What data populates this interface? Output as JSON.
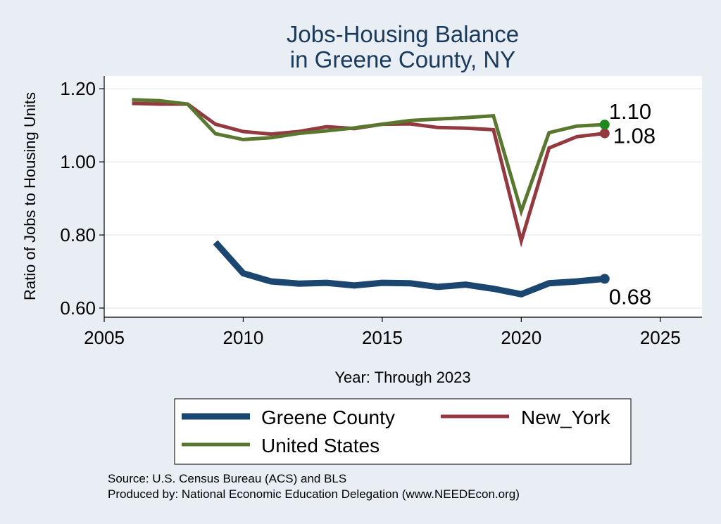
{
  "chart_data": {
    "type": "line",
    "title": [
      "Jobs-Housing Balance",
      "in Greene County, NY"
    ],
    "xlabel": "Year: Through 2023",
    "ylabel": "Ratio of Jobs to Housing Units",
    "xlim": [
      2005,
      2026.5
    ],
    "ylim": [
      0.575,
      1.235
    ],
    "xticks": [
      2005,
      2010,
      2015,
      2020,
      2025
    ],
    "xtick_labels": [
      "2005",
      "2010",
      "2015",
      "2020",
      "2025"
    ],
    "yticks": [
      0.6,
      0.8,
      1.0,
      1.2
    ],
    "ytick_labels": [
      "0.60",
      "0.80",
      "1.00",
      "1.20"
    ],
    "grid": true,
    "legend_position": "bottom",
    "series": [
      {
        "name": "Greene County",
        "color": "#1a4670",
        "x": [
          2009,
          2010,
          2011,
          2012,
          2013,
          2014,
          2015,
          2016,
          2017,
          2018,
          2019,
          2020,
          2021,
          2022,
          2023
        ],
        "values": [
          0.78,
          0.695,
          0.673,
          0.667,
          0.669,
          0.662,
          0.669,
          0.668,
          0.658,
          0.664,
          0.653,
          0.638,
          0.668,
          0.673,
          0.68
        ],
        "end_label": "0.68",
        "end_marker_color": "#1a4670"
      },
      {
        "name": "New_York",
        "color": "#93393f",
        "x": [
          2006,
          2007,
          2008,
          2009,
          2010,
          2011,
          2012,
          2013,
          2014,
          2015,
          2016,
          2017,
          2018,
          2019,
          2020,
          2021,
          2022,
          2023
        ],
        "values": [
          1.16,
          1.158,
          1.158,
          1.103,
          1.083,
          1.076,
          1.083,
          1.096,
          1.091,
          1.103,
          1.104,
          1.094,
          1.092,
          1.088,
          0.784,
          1.038,
          1.069,
          1.078
        ],
        "end_label": "1.08",
        "end_marker_color": "#93393f"
      },
      {
        "name": "United States",
        "color": "#5a7730",
        "x": [
          2006,
          2007,
          2008,
          2009,
          2010,
          2011,
          2012,
          2013,
          2014,
          2015,
          2016,
          2017,
          2018,
          2019,
          2020,
          2021,
          2022,
          2023
        ],
        "values": [
          1.17,
          1.167,
          1.158,
          1.077,
          1.061,
          1.066,
          1.078,
          1.085,
          1.093,
          1.103,
          1.113,
          1.117,
          1.121,
          1.126,
          0.865,
          1.08,
          1.098,
          1.102
        ],
        "end_label": "1.10",
        "end_marker_color": "#1e8a1e"
      }
    ],
    "notes": [
      "Source: U.S. Census Bureau (ACS) and BLS",
      "Produced by: National Economic Education Delegation (www.NEEDEcon.org)"
    ]
  }
}
